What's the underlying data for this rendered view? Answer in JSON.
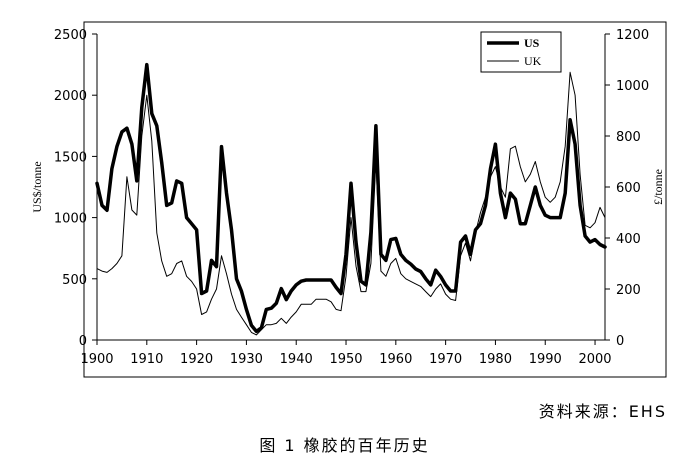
{
  "caption": {
    "source": "资料来源：EHS",
    "title": "图 1  橡胶的百年历史"
  },
  "chart_data": {
    "type": "line",
    "xlabel": "",
    "ylabel_left": "US$/tonne",
    "ylabel_right": "£/tonne",
    "xlim": [
      1900,
      2002
    ],
    "ylim_left": [
      0,
      2500
    ],
    "ylim_right": [
      0,
      1200
    ],
    "x_ticks": [
      "1900",
      "1910",
      "1920",
      "1930",
      "1940",
      "1950",
      "1960",
      "1970",
      "1980",
      "1990",
      "2000"
    ],
    "y_ticks_left": [
      "0",
      "500",
      "1000",
      "1500",
      "2000",
      "2500"
    ],
    "y_ticks_right": [
      "0",
      "200",
      "400",
      "600",
      "800",
      "1000",
      "1200"
    ],
    "grid": false,
    "legend_position": "top-right",
    "series": [
      {
        "name": "US",
        "axis": "left",
        "color": "#000000",
        "width": "thick",
        "points": [
          [
            1900,
            1280
          ],
          [
            1901,
            1100
          ],
          [
            1902,
            1060
          ],
          [
            1903,
            1400
          ],
          [
            1904,
            1580
          ],
          [
            1905,
            1700
          ],
          [
            1906,
            1730
          ],
          [
            1907,
            1600
          ],
          [
            1908,
            1300
          ],
          [
            1909,
            1900
          ],
          [
            1910,
            2250
          ],
          [
            1911,
            1850
          ],
          [
            1912,
            1750
          ],
          [
            1913,
            1450
          ],
          [
            1914,
            1100
          ],
          [
            1915,
            1120
          ],
          [
            1916,
            1300
          ],
          [
            1917,
            1280
          ],
          [
            1918,
            1000
          ],
          [
            1919,
            950
          ],
          [
            1920,
            900
          ],
          [
            1921,
            380
          ],
          [
            1922,
            400
          ],
          [
            1923,
            650
          ],
          [
            1924,
            600
          ],
          [
            1925,
            1580
          ],
          [
            1926,
            1200
          ],
          [
            1927,
            900
          ],
          [
            1928,
            500
          ],
          [
            1929,
            400
          ],
          [
            1930,
            250
          ],
          [
            1931,
            120
          ],
          [
            1932,
            70
          ],
          [
            1933,
            100
          ],
          [
            1934,
            250
          ],
          [
            1935,
            260
          ],
          [
            1936,
            300
          ],
          [
            1937,
            420
          ],
          [
            1938,
            330
          ],
          [
            1939,
            400
          ],
          [
            1940,
            450
          ],
          [
            1941,
            480
          ],
          [
            1942,
            490
          ],
          [
            1943,
            490
          ],
          [
            1944,
            490
          ],
          [
            1945,
            490
          ],
          [
            1946,
            490
          ],
          [
            1947,
            490
          ],
          [
            1948,
            430
          ],
          [
            1949,
            380
          ],
          [
            1950,
            700
          ],
          [
            1951,
            1280
          ],
          [
            1952,
            800
          ],
          [
            1953,
            480
          ],
          [
            1954,
            450
          ],
          [
            1955,
            880
          ],
          [
            1956,
            1750
          ],
          [
            1957,
            700
          ],
          [
            1958,
            650
          ],
          [
            1959,
            820
          ],
          [
            1960,
            830
          ],
          [
            1961,
            700
          ],
          [
            1962,
            650
          ],
          [
            1963,
            620
          ],
          [
            1964,
            580
          ],
          [
            1965,
            560
          ],
          [
            1966,
            500
          ],
          [
            1967,
            450
          ],
          [
            1968,
            570
          ],
          [
            1969,
            520
          ],
          [
            1970,
            450
          ],
          [
            1971,
            400
          ],
          [
            1972,
            400
          ],
          [
            1973,
            800
          ],
          [
            1974,
            850
          ],
          [
            1975,
            700
          ],
          [
            1976,
            900
          ],
          [
            1977,
            950
          ],
          [
            1978,
            1100
          ],
          [
            1979,
            1400
          ],
          [
            1980,
            1600
          ],
          [
            1981,
            1200
          ],
          [
            1982,
            1000
          ],
          [
            1983,
            1200
          ],
          [
            1984,
            1150
          ],
          [
            1985,
            950
          ],
          [
            1986,
            950
          ],
          [
            1987,
            1100
          ],
          [
            1988,
            1250
          ],
          [
            1989,
            1100
          ],
          [
            1990,
            1020
          ],
          [
            1991,
            1000
          ],
          [
            1992,
            1000
          ],
          [
            1993,
            1000
          ],
          [
            1994,
            1200
          ],
          [
            1995,
            1800
          ],
          [
            1996,
            1600
          ],
          [
            1997,
            1100
          ],
          [
            1998,
            850
          ],
          [
            1999,
            800
          ],
          [
            2000,
            820
          ],
          [
            2001,
            780
          ],
          [
            2002,
            760
          ]
        ]
      },
      {
        "name": "UK",
        "axis": "right",
        "color": "#000000",
        "width": "thin",
        "points": [
          [
            1900,
            280
          ],
          [
            1901,
            270
          ],
          [
            1902,
            265
          ],
          [
            1903,
            280
          ],
          [
            1904,
            300
          ],
          [
            1905,
            330
          ],
          [
            1906,
            640
          ],
          [
            1907,
            510
          ],
          [
            1908,
            490
          ],
          [
            1909,
            800
          ],
          [
            1910,
            960
          ],
          [
            1911,
            780
          ],
          [
            1912,
            420
          ],
          [
            1913,
            310
          ],
          [
            1914,
            250
          ],
          [
            1915,
            260
          ],
          [
            1916,
            300
          ],
          [
            1917,
            310
          ],
          [
            1918,
            250
          ],
          [
            1919,
            230
          ],
          [
            1920,
            200
          ],
          [
            1921,
            100
          ],
          [
            1922,
            110
          ],
          [
            1923,
            160
          ],
          [
            1924,
            200
          ],
          [
            1925,
            330
          ],
          [
            1926,
            260
          ],
          [
            1927,
            180
          ],
          [
            1928,
            120
          ],
          [
            1929,
            90
          ],
          [
            1930,
            60
          ],
          [
            1931,
            30
          ],
          [
            1932,
            20
          ],
          [
            1933,
            40
          ],
          [
            1934,
            60
          ],
          [
            1935,
            60
          ],
          [
            1936,
            65
          ],
          [
            1937,
            85
          ],
          [
            1938,
            65
          ],
          [
            1939,
            90
          ],
          [
            1940,
            110
          ],
          [
            1941,
            140
          ],
          [
            1942,
            140
          ],
          [
            1943,
            140
          ],
          [
            1944,
            160
          ],
          [
            1945,
            160
          ],
          [
            1946,
            160
          ],
          [
            1947,
            150
          ],
          [
            1948,
            120
          ],
          [
            1949,
            115
          ],
          [
            1950,
            250
          ],
          [
            1951,
            480
          ],
          [
            1952,
            290
          ],
          [
            1953,
            190
          ],
          [
            1954,
            190
          ],
          [
            1955,
            300
          ],
          [
            1956,
            700
          ],
          [
            1957,
            270
          ],
          [
            1958,
            250
          ],
          [
            1959,
            300
          ],
          [
            1960,
            320
          ],
          [
            1961,
            260
          ],
          [
            1962,
            240
          ],
          [
            1963,
            230
          ],
          [
            1964,
            220
          ],
          [
            1965,
            210
          ],
          [
            1966,
            190
          ],
          [
            1967,
            170
          ],
          [
            1968,
            200
          ],
          [
            1969,
            220
          ],
          [
            1970,
            180
          ],
          [
            1971,
            160
          ],
          [
            1972,
            155
          ],
          [
            1973,
            330
          ],
          [
            1974,
            380
          ],
          [
            1975,
            310
          ],
          [
            1976,
            420
          ],
          [
            1977,
            500
          ],
          [
            1978,
            560
          ],
          [
            1979,
            640
          ],
          [
            1980,
            680
          ],
          [
            1981,
            600
          ],
          [
            1982,
            560
          ],
          [
            1983,
            750
          ],
          [
            1984,
            760
          ],
          [
            1985,
            680
          ],
          [
            1986,
            620
          ],
          [
            1987,
            650
          ],
          [
            1988,
            700
          ],
          [
            1989,
            620
          ],
          [
            1990,
            560
          ],
          [
            1991,
            540
          ],
          [
            1992,
            560
          ],
          [
            1993,
            620
          ],
          [
            1994,
            760
          ],
          [
            1995,
            1050
          ],
          [
            1996,
            960
          ],
          [
            1997,
            650
          ],
          [
            1998,
            450
          ],
          [
            1999,
            440
          ],
          [
            2000,
            460
          ],
          [
            2001,
            520
          ],
          [
            2002,
            480
          ]
        ]
      }
    ]
  }
}
